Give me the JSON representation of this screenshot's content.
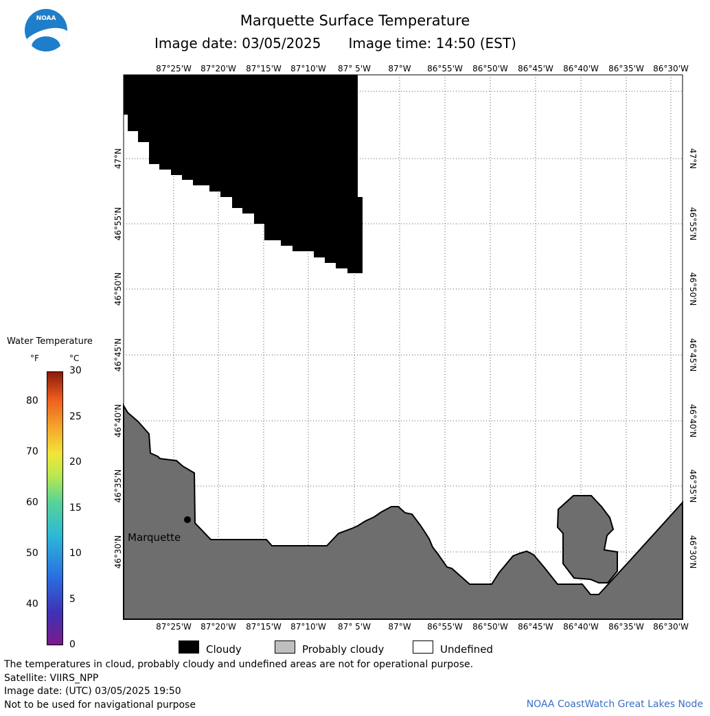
{
  "header": {
    "title": "Marquette Surface Temperature",
    "image_date": "Image date: 03/05/2025",
    "image_time": "Image time: 14:50 (EST)"
  },
  "logo": {
    "text": "NOAA",
    "icon": "noaa-logo-icon"
  },
  "map": {
    "lon_labels": [
      "87°25'W",
      "87°20'W",
      "87°15'W",
      "87°10'W",
      "87° 5'W",
      "87°W",
      "86°55'W",
      "86°50'W",
      "86°45'W",
      "86°40'W",
      "86°35'W",
      "86°30'W"
    ],
    "lat_labels": [
      "47°N",
      "46°55'N",
      "46°50'N",
      "46°45'N",
      "46°40'N",
      "46°35'N",
      "46°30'N"
    ],
    "city_label": "Marquette",
    "colors": {
      "cloudy": "#000000",
      "land": "#6e6e6e",
      "undefined": "#ffffff",
      "probably_cloudy": "#bfbfbf",
      "grid": "#555555"
    }
  },
  "legend": {
    "title": "Water Temperature",
    "unit_f": "°F",
    "unit_c": "°C",
    "f_ticks": [
      "80",
      "70",
      "60",
      "50",
      "40"
    ],
    "c_ticks": [
      "30",
      "25",
      "20",
      "15",
      "10",
      "5",
      "0"
    ],
    "range_f": [
      32,
      86
    ],
    "range_c": [
      0,
      30
    ]
  },
  "key": {
    "cloudy": "Cloudy",
    "probably_cloudy": "Probably cloudy",
    "undefined": "Undefined"
  },
  "footer": {
    "note": "The temperatures in cloud, probably cloudy and undefined areas are not for operational purpose.",
    "satellite": "Satellite: VIIRS_NPP",
    "utc_date": "Image date: (UTC) 03/05/2025  19:50",
    "nav_note": "Not to be used for navigational purpose",
    "credit": "NOAA CoastWatch Great Lakes Node"
  }
}
